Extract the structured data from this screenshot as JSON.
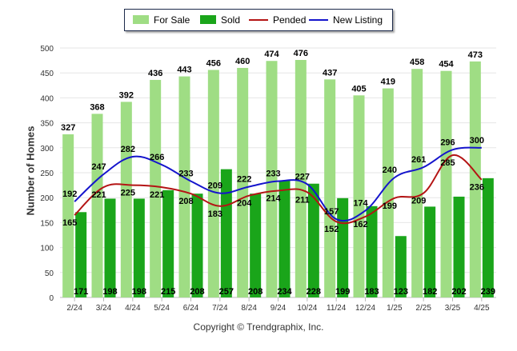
{
  "chart_data": {
    "type": "bar",
    "categories": [
      "2/24",
      "3/24",
      "4/24",
      "5/24",
      "6/24",
      "7/24",
      "8/24",
      "9/24",
      "10/24",
      "11/24",
      "12/24",
      "1/25",
      "2/25",
      "3/25",
      "4/25"
    ],
    "series": [
      {
        "name": "For Sale",
        "kind": "bar",
        "color": "#9fdd84",
        "values": [
          327,
          368,
          392,
          436,
          443,
          456,
          460,
          474,
          476,
          437,
          405,
          419,
          458,
          454,
          473
        ]
      },
      {
        "name": "Sold",
        "kind": "bar",
        "color": "#1aa51a",
        "values": [
          171,
          198,
          198,
          215,
          208,
          257,
          208,
          234,
          228,
          199,
          183,
          123,
          182,
          202,
          239
        ]
      },
      {
        "name": "Pended",
        "kind": "line",
        "color": "#b41414",
        "values": [
          165,
          221,
          225,
          221,
          208,
          183,
          204,
          214,
          211,
          152,
          162,
          199,
          209,
          285,
          236
        ]
      },
      {
        "name": "New Listing",
        "kind": "line",
        "color": "#1414cc",
        "values": [
          192,
          247,
          282,
          266,
          233,
          209,
          222,
          233,
          227,
          157,
          174,
          240,
          261,
          296,
          300
        ]
      }
    ],
    "ylabel": "Number of Homes",
    "ylim": [
      0,
      500
    ],
    "yticks": [
      0,
      50,
      100,
      150,
      200,
      250,
      300,
      350,
      400,
      450,
      500
    ],
    "grid": true,
    "legend_position": "top"
  },
  "credit": "Copyright © Trendgraphix, Inc."
}
